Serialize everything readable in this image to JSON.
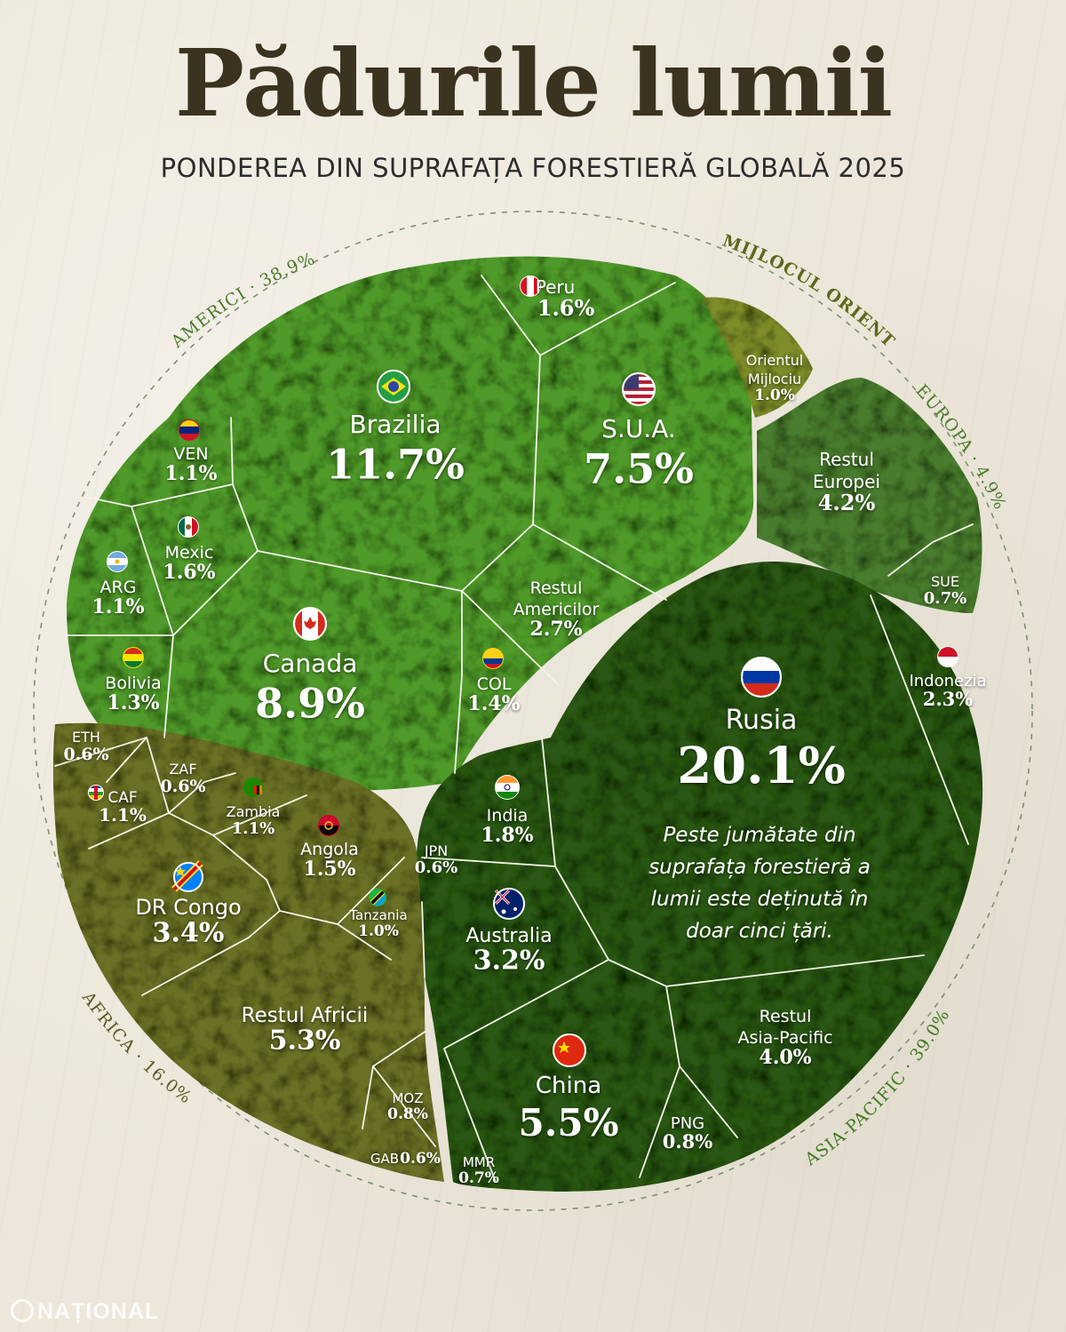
{
  "title": "Pădurile lumii",
  "subtitle": "PONDEREA DIN SUPRAFAȚA FORESTIERĂ GLOBALĂ 2025",
  "note": "Peste jumătate din suprafața forestieră a lumii este deținută în doar cinci țări.",
  "logo": "NAȚIONAL",
  "colors": {
    "americas": "#4f9a2c",
    "middle_east": "#7e8d2a",
    "europe": "#4a7c2e",
    "asia_pacific": "#2c5718",
    "africa": "#6b7028",
    "background": "#ece7da",
    "region_label": "#4a7a2a"
  },
  "chart_data": {
    "type": "voronoi-treemap",
    "title": "Pădurile lumii",
    "subtitle": "PONDEREA DIN SUPRAFAȚA FORESTIERĂ GLOBALĂ 2025",
    "regions": [
      {
        "name": "AMERICI",
        "share": "38.9%",
        "label": "AMERICI · 38.9%"
      },
      {
        "name": "MIJLOCUL ORIENT",
        "share": "",
        "label": "MIJLOCUL ORIENT"
      },
      {
        "name": "EUROPA",
        "share": "4.9%",
        "label": "EUROPA · 4.9%"
      },
      {
        "name": "ASIA-PACIFIC",
        "share": "39.0%",
        "label": "ASIA-PACIFIC · 39.0%"
      },
      {
        "name": "AFRICA",
        "share": "16.0%",
        "label": "AFRICA · 16.0%"
      }
    ],
    "cells": [
      {
        "name": "Brazilia",
        "value": 11.7,
        "label": "11.7%",
        "region": "AMERICI",
        "flag": "flag-brazil"
      },
      {
        "name": "S.U.A.",
        "value": 7.5,
        "label": "7.5%",
        "region": "AMERICI",
        "flag": "flag-usa"
      },
      {
        "name": "Canada",
        "value": 8.9,
        "label": "8.9%",
        "region": "AMERICI",
        "flag": "flag-canada"
      },
      {
        "name": "Peru",
        "value": 1.6,
        "label": "1.6%",
        "region": "AMERICI",
        "flag": "flag-peru"
      },
      {
        "name": "VEN",
        "value": 1.1,
        "label": "1.1%",
        "region": "AMERICI",
        "flag": "flag-venezuela"
      },
      {
        "name": "Mexic",
        "value": 1.6,
        "label": "1.6%",
        "region": "AMERICI",
        "flag": "flag-mexico"
      },
      {
        "name": "ARG",
        "value": 1.1,
        "label": "1.1%",
        "region": "AMERICI",
        "flag": "flag-argentina"
      },
      {
        "name": "Bolivia",
        "value": 1.3,
        "label": "1.3%",
        "region": "AMERICI",
        "flag": "flag-bolivia"
      },
      {
        "name": "Restul Americilor",
        "value": 2.7,
        "label": "2.7%",
        "region": "AMERICI",
        "flag": ""
      },
      {
        "name": "COL",
        "value": 1.4,
        "label": "1.4%",
        "region": "AMERICI",
        "flag": "flag-colombia"
      },
      {
        "name": "Orientul Mijlociu",
        "value": 1.0,
        "label": "1.0%",
        "region": "MIJLOCUL ORIENT",
        "flag": ""
      },
      {
        "name": "Restul Europei",
        "value": 4.2,
        "label": "4.2%",
        "region": "EUROPA",
        "flag": ""
      },
      {
        "name": "SUE",
        "value": 0.7,
        "label": "0.7%",
        "region": "EUROPA",
        "flag": ""
      },
      {
        "name": "Rusia",
        "value": 20.1,
        "label": "20.1%",
        "region": "ASIA-PACIFIC",
        "flag": "flag-russia"
      },
      {
        "name": "Indonezia",
        "value": 2.3,
        "label": "2.3%",
        "region": "ASIA-PACIFIC",
        "flag": "flag-indonesia"
      },
      {
        "name": "India",
        "value": 1.8,
        "label": "1.8%",
        "region": "ASIA-PACIFIC",
        "flag": "flag-india"
      },
      {
        "name": "JPN",
        "value": 0.6,
        "label": "0.6%",
        "region": "ASIA-PACIFIC",
        "flag": ""
      },
      {
        "name": "Australia",
        "value": 3.2,
        "label": "3.2%",
        "region": "ASIA-PACIFIC",
        "flag": "flag-australia"
      },
      {
        "name": "China",
        "value": 5.5,
        "label": "5.5%",
        "region": "ASIA-PACIFIC",
        "flag": "flag-china"
      },
      {
        "name": "Restul Asia-Pacific",
        "value": 4.0,
        "label": "4.0%",
        "region": "ASIA-PACIFIC",
        "flag": ""
      },
      {
        "name": "PNG",
        "value": 0.8,
        "label": "0.8%",
        "region": "ASIA-PACIFIC",
        "flag": ""
      },
      {
        "name": "MMR",
        "value": 0.7,
        "label": "0.7%",
        "region": "ASIA-PACIFIC",
        "flag": ""
      },
      {
        "name": "ETH",
        "value": 0.6,
        "label": "0.6%",
        "region": "AFRICA",
        "flag": ""
      },
      {
        "name": "ZAF",
        "value": 0.6,
        "label": "0.6%",
        "region": "AFRICA",
        "flag": ""
      },
      {
        "name": "CAF",
        "value": 1.1,
        "label": "1.1%",
        "region": "AFRICA",
        "flag": "flag-caf"
      },
      {
        "name": "Zambia",
        "value": 1.1,
        "label": "1.1%",
        "region": "AFRICA",
        "flag": "flag-zambia"
      },
      {
        "name": "Angola",
        "value": 1.5,
        "label": "1.5%",
        "region": "AFRICA",
        "flag": "flag-angola"
      },
      {
        "name": "DR Congo",
        "value": 3.4,
        "label": "3.4%",
        "region": "AFRICA",
        "flag": "flag-drc"
      },
      {
        "name": "Tanzania",
        "value": 1.0,
        "label": "1.0%",
        "region": "AFRICA",
        "flag": "flag-tanzania"
      },
      {
        "name": "Restul Africii",
        "value": 5.3,
        "label": "5.3%",
        "region": "AFRICA",
        "flag": ""
      },
      {
        "name": "MOZ",
        "value": 0.8,
        "label": "0.8%",
        "region": "AFRICA",
        "flag": ""
      },
      {
        "name": "GAB",
        "value": 0.6,
        "label": "0.6%",
        "region": "AFRICA",
        "flag": ""
      }
    ]
  }
}
